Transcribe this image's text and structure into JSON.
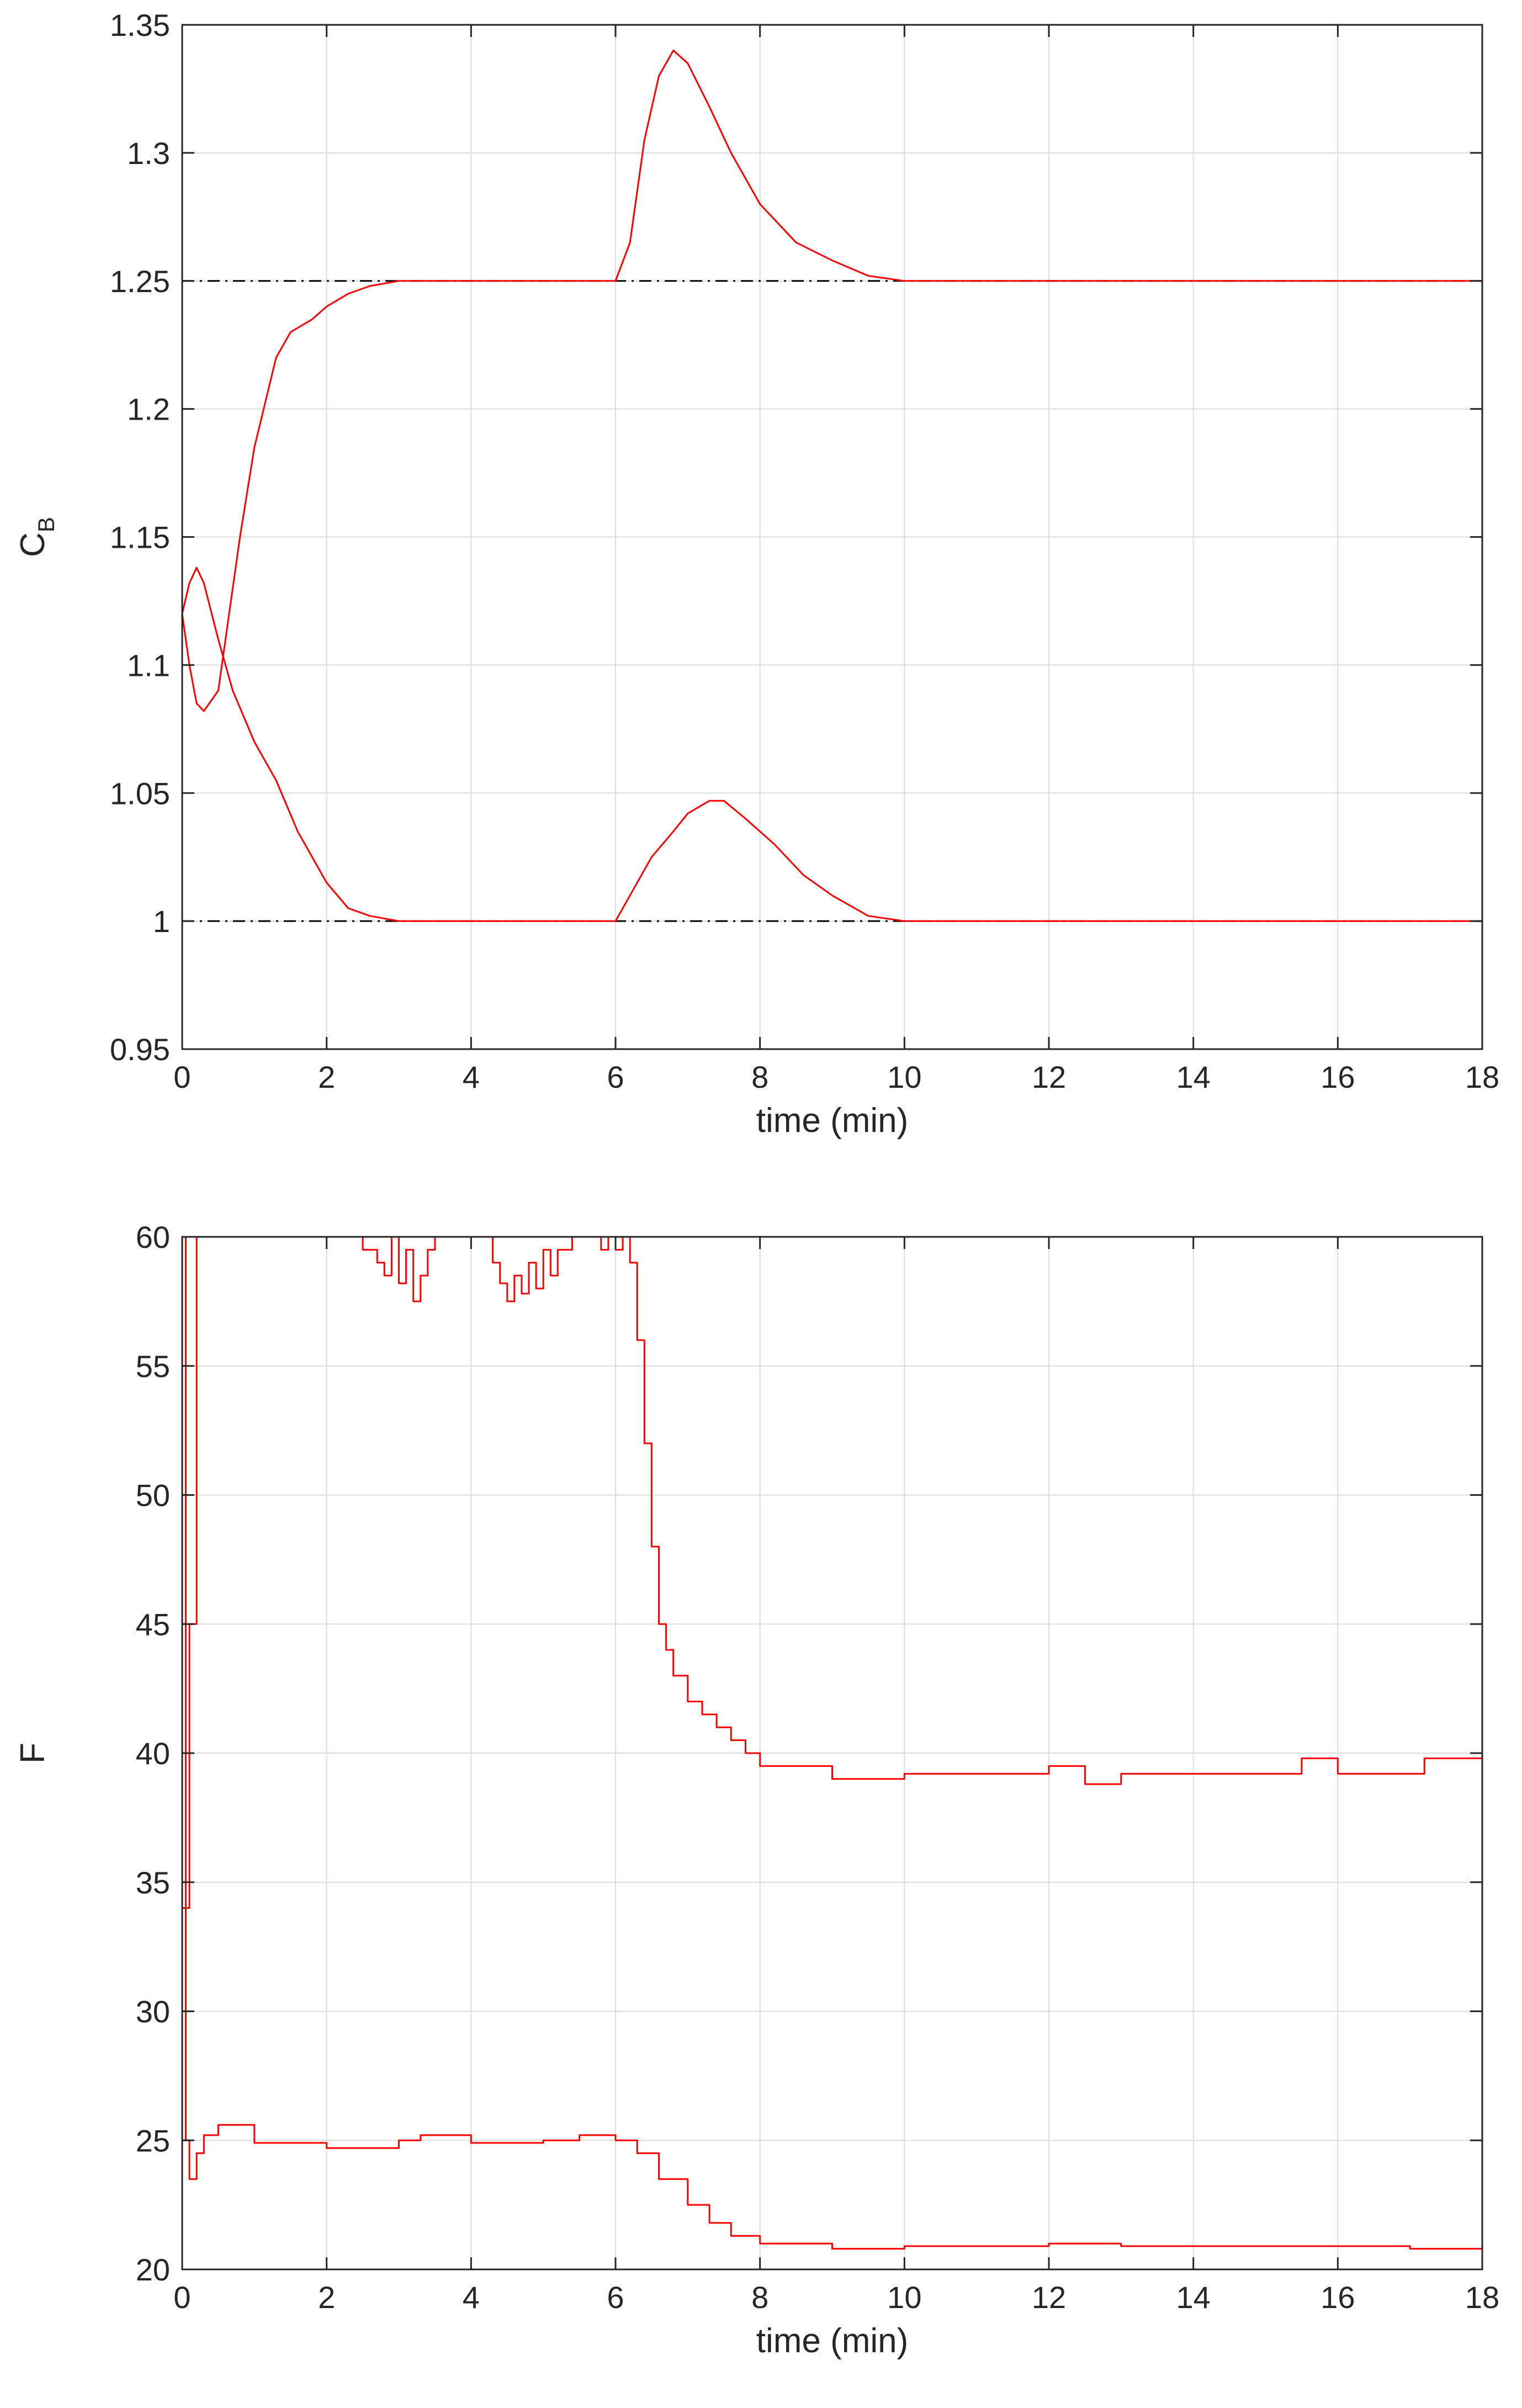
{
  "chart_data": [
    {
      "type": "line",
      "xlabel": "time (min)",
      "ylabel": "C",
      "ylabel_subscript": "B",
      "xlim": [
        0,
        18
      ],
      "ylim": [
        0.95,
        1.35
      ],
      "xticks": [
        "0",
        "2",
        "4",
        "6",
        "8",
        "10",
        "12",
        "14",
        "16",
        "18"
      ],
      "yticks": [
        "0.95",
        "1",
        "1.05",
        "1.1",
        "1.15",
        "1.2",
        "1.25",
        "1.3",
        "1.35"
      ],
      "grid": true,
      "colors": {
        "series": "#ff0000",
        "reference": "#000000",
        "grid": "#dcdcdc",
        "axis": "#262626"
      },
      "reference_lines": [
        1.25,
        1.0
      ],
      "series": [
        {
          "x": [
            0,
            0.1,
            0.2,
            0.3,
            0.5,
            0.8,
            1.0,
            1.3,
            1.5,
            1.8,
            2.0,
            2.3,
            2.6,
            3.0,
            3.5,
            4.0,
            5.0,
            5.5,
            6.0,
            6.2,
            6.4,
            6.6,
            6.8,
            7.0,
            7.3,
            7.6,
            8.0,
            8.5,
            9.0,
            9.5,
            10,
            11,
            12,
            13,
            14,
            15,
            16,
            17,
            18
          ],
          "y": [
            1.12,
            1.1,
            1.085,
            1.082,
            1.09,
            1.15,
            1.185,
            1.22,
            1.23,
            1.235,
            1.24,
            1.245,
            1.248,
            1.25,
            1.25,
            1.25,
            1.25,
            1.25,
            1.25,
            1.265,
            1.305,
            1.33,
            1.34,
            1.335,
            1.318,
            1.3,
            1.28,
            1.265,
            1.258,
            1.252,
            1.25,
            1.25,
            1.25,
            1.25,
            1.25,
            1.25,
            1.25,
            1.25,
            1.25
          ]
        },
        {
          "x": [
            0,
            0.1,
            0.2,
            0.3,
            0.5,
            0.7,
            1.0,
            1.3,
            1.6,
            2.0,
            2.3,
            2.6,
            3.0,
            3.5,
            4.0,
            5.0,
            6.0,
            6.2,
            6.5,
            6.8,
            7.0,
            7.3,
            7.5,
            7.8,
            8.2,
            8.6,
            9.0,
            9.5,
            10,
            11,
            12,
            13,
            14,
            15,
            16,
            17,
            18
          ],
          "y": [
            1.12,
            1.132,
            1.138,
            1.132,
            1.11,
            1.09,
            1.07,
            1.055,
            1.035,
            1.015,
            1.005,
            1.002,
            1.0,
            1.0,
            1.0,
            1.0,
            1.0,
            1.01,
            1.025,
            1.035,
            1.042,
            1.047,
            1.047,
            1.04,
            1.03,
            1.018,
            1.01,
            1.002,
            1.0,
            1.0,
            1.0,
            1.0,
            1.0,
            1.0,
            1.0,
            1.0,
            1.0
          ]
        }
      ]
    },
    {
      "type": "line",
      "xlabel": "time (min)",
      "ylabel": "F",
      "xlim": [
        0,
        18
      ],
      "ylim": [
        20,
        60
      ],
      "xticks": [
        "0",
        "2",
        "4",
        "6",
        "8",
        "10",
        "12",
        "14",
        "16",
        "18"
      ],
      "yticks": [
        "20",
        "25",
        "30",
        "35",
        "40",
        "45",
        "50",
        "55",
        "60"
      ],
      "grid": true,
      "step": true,
      "colors": {
        "series": "#ff0000",
        "grid": "#dcdcdc",
        "axis": "#262626"
      },
      "series": [
        {
          "x": [
            0,
            0.1,
            0.2,
            2.5,
            2.7,
            2.8,
            2.9,
            3.0,
            3.1,
            3.2,
            3.3,
            3.4,
            3.5,
            4.3,
            4.4,
            4.5,
            4.6,
            4.7,
            4.8,
            4.9,
            5.0,
            5.1,
            5.2,
            5.4,
            5.8,
            5.9,
            6.0,
            6.1,
            6.2,
            6.3,
            6.4,
            6.5,
            6.6,
            6.7,
            6.8,
            7.0,
            7.2,
            7.4,
            7.6,
            7.8,
            8.0,
            8.5,
            9.0,
            9.5,
            10,
            11,
            12,
            12.5,
            13,
            14,
            15,
            15.5,
            16,
            17,
            17.2,
            18
          ],
          "y": [
            34,
            45,
            60,
            59.5,
            59,
            58.5,
            60,
            58.2,
            59.5,
            57.5,
            58.5,
            59.5,
            60,
            59,
            58.2,
            57.5,
            58.5,
            57.8,
            59,
            58,
            59.5,
            58.5,
            59.5,
            60,
            59.5,
            60,
            59.5,
            60,
            59,
            56,
            52,
            48,
            45,
            44,
            43,
            42,
            41.5,
            41,
            40.5,
            40,
            39.5,
            39.5,
            39,
            39,
            39.2,
            39.2,
            39.5,
            38.8,
            39.2,
            39.2,
            39.2,
            39.8,
            39.2,
            39.2,
            39.8,
            39.2
          ]
        },
        {
          "x": [
            0,
            0.05,
            0.1,
            0.2,
            0.3,
            0.5,
            1.0,
            2.0,
            3.0,
            3.3,
            4.0,
            5.0,
            5.5,
            6.0,
            6.3,
            6.6,
            7.0,
            7.3,
            7.6,
            8.0,
            9.0,
            10,
            11,
            12,
            13,
            14,
            15,
            16,
            17,
            18
          ],
          "y": [
            60,
            25,
            23.5,
            24.5,
            25.2,
            25.6,
            24.9,
            24.7,
            25.0,
            25.2,
            24.9,
            25.0,
            25.2,
            25.0,
            24.5,
            23.5,
            22.5,
            21.8,
            21.3,
            21.0,
            20.8,
            20.9,
            20.9,
            21.0,
            20.9,
            20.9,
            20.9,
            20.9,
            20.8,
            20.8
          ]
        }
      ]
    }
  ]
}
